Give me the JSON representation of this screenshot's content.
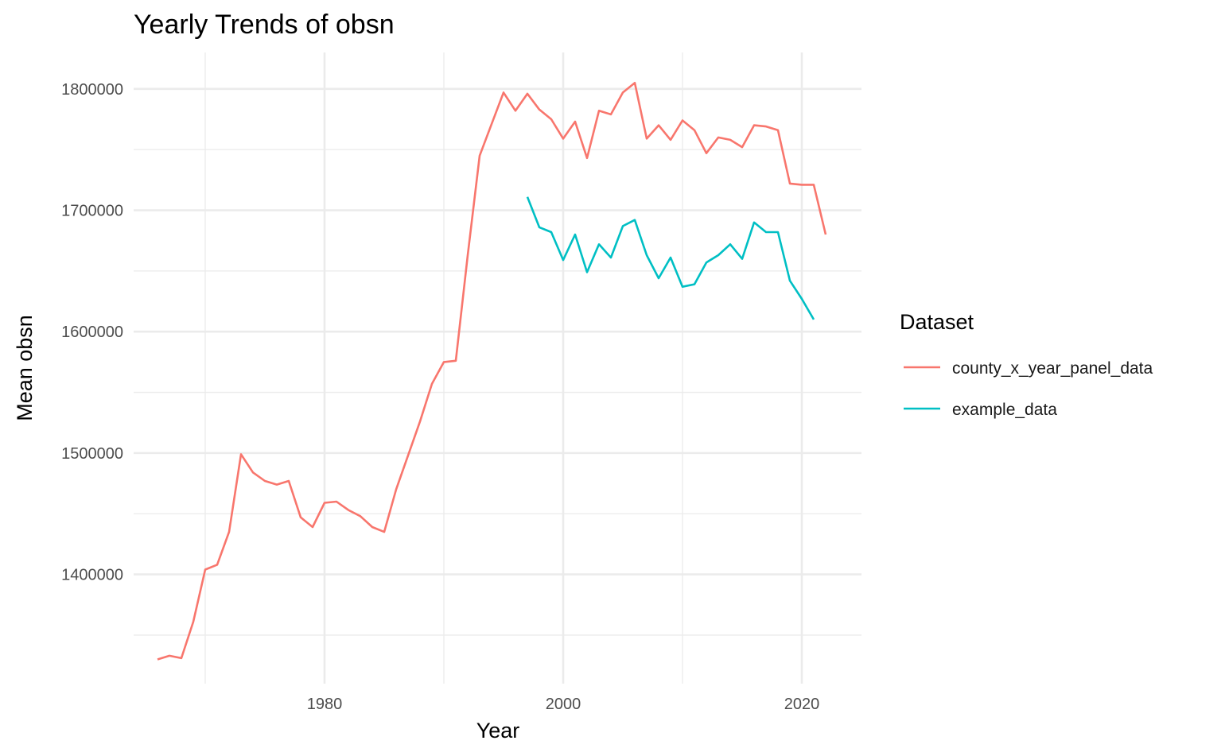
{
  "chart_data": {
    "type": "line",
    "title": "Yearly Trends of obsn",
    "xlabel": "Year",
    "ylabel": "Mean obsn",
    "xlim": [
      1964,
      2025
    ],
    "ylim": [
      1310000,
      1830000
    ],
    "x_ticks": [
      1980,
      2000,
      2020
    ],
    "x_minor_ticks": [
      1970,
      1990,
      2010
    ],
    "y_ticks": [
      1400000,
      1500000,
      1600000,
      1700000,
      1800000
    ],
    "y_minor_ticks": [
      1350000,
      1450000,
      1550000,
      1650000,
      1750000
    ],
    "grid": true,
    "legend": {
      "title": "Dataset",
      "position": "right"
    },
    "series": [
      {
        "name": "county_x_year_panel_data",
        "color": "#F8766D",
        "x": [
          1966,
          1967,
          1968,
          1969,
          1970,
          1971,
          1972,
          1973,
          1974,
          1975,
          1976,
          1977,
          1978,
          1979,
          1980,
          1981,
          1982,
          1983,
          1984,
          1985,
          1986,
          1987,
          1988,
          1989,
          1990,
          1991,
          1992,
          1993,
          1994,
          1995,
          1996,
          1997,
          1998,
          1999,
          2000,
          2001,
          2002,
          2003,
          2004,
          2005,
          2006,
          2007,
          2008,
          2009,
          2010,
          2011,
          2012,
          2013,
          2014,
          2015,
          2016,
          2017,
          2018,
          2019,
          2020,
          2021,
          2022
        ],
        "y": [
          1330000,
          1333000,
          1331000,
          1361000,
          1404000,
          1408000,
          1435000,
          1499000,
          1484000,
          1477000,
          1474000,
          1477000,
          1447000,
          1439000,
          1459000,
          1460000,
          1453000,
          1448000,
          1439000,
          1435000,
          1470000,
          1498000,
          1526000,
          1557000,
          1575000,
          1576000,
          1663000,
          1745000,
          1771000,
          1797000,
          1782000,
          1796000,
          1783000,
          1775000,
          1759000,
          1773000,
          1743000,
          1782000,
          1779000,
          1797000,
          1805000,
          1759000,
          1770000,
          1758000,
          1774000,
          1766000,
          1747000,
          1760000,
          1758000,
          1752000,
          1770000,
          1769000,
          1766000,
          1722000,
          1721000,
          1721000,
          1680000
        ]
      },
      {
        "name": "example_data",
        "color": "#00BFC4",
        "x": [
          1997,
          1998,
          1999,
          2000,
          2001,
          2002,
          2003,
          2004,
          2005,
          2006,
          2007,
          2008,
          2009,
          2010,
          2011,
          2012,
          2013,
          2014,
          2015,
          2016,
          2017,
          2018,
          2019,
          2020,
          2021
        ],
        "y": [
          1711000,
          1686000,
          1682000,
          1659000,
          1680000,
          1649000,
          1672000,
          1661000,
          1687000,
          1692000,
          1663000,
          1644000,
          1661000,
          1637000,
          1639000,
          1657000,
          1663000,
          1672000,
          1660000,
          1690000,
          1682000,
          1682000,
          1642000,
          1627000,
          1610000
        ]
      }
    ]
  }
}
